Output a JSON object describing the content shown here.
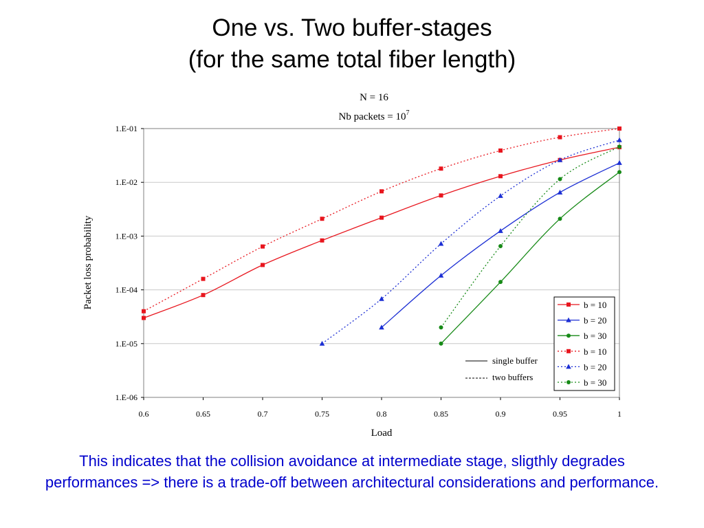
{
  "slide": {
    "title_line1": "One vs. Two buffer-stages",
    "title_line2": "(for the same total fiber length)",
    "caption": "This indicates that the collision avoidance at intermediate stage, sligthly degrades performances => there is a trade-off between architectural considerations and performance."
  },
  "chart_data": {
    "type": "line",
    "title": "N = 16",
    "subtitle_base": "Nb packets = 10",
    "subtitle_exp": "7",
    "xlabel": "Load",
    "ylabel": "Packet loss probability",
    "xlim": [
      0.6,
      1.0
    ],
    "ylim": [
      1e-06,
      0.1
    ],
    "yscale": "log",
    "x_ticks": [
      "0.6",
      "0.65",
      "0.7",
      "0.75",
      "0.8",
      "0.85",
      "0.9",
      "0.95",
      "1"
    ],
    "y_ticks": [
      "1.E-01",
      "1.E-02",
      "1.E-03",
      "1.E-04",
      "1.E-05",
      "1.E-06"
    ],
    "grid": "horizontal",
    "legend_position": "bottom-right",
    "series": [
      {
        "name": "b = 10",
        "color": "#e8161e",
        "line": "solid",
        "marker": "square",
        "x": [
          0.6,
          0.65,
          0.7,
          0.75,
          0.8,
          0.85,
          0.9,
          0.95,
          1.0
        ],
        "y": [
          3e-05,
          8e-05,
          0.00029,
          0.00083,
          0.0022,
          0.0057,
          0.013,
          0.026,
          0.045
        ]
      },
      {
        "name": "b = 20",
        "color": "#1c2fd4",
        "line": "solid",
        "marker": "triangle",
        "x": [
          0.8,
          0.85,
          0.9,
          0.95,
          1.0
        ],
        "y": [
          2e-05,
          0.000185,
          0.00125,
          0.0065,
          0.023
        ]
      },
      {
        "name": "b = 30",
        "color": "#178a17",
        "line": "solid",
        "marker": "circle",
        "x": [
          0.85,
          0.9,
          0.95,
          1.0
        ],
        "y": [
          1e-05,
          0.00014,
          0.0021,
          0.0155
        ]
      },
      {
        "name": "b = 10",
        "color": "#e8161e",
        "line": "dotted",
        "marker": "square",
        "x": [
          0.6,
          0.65,
          0.7,
          0.75,
          0.8,
          0.85,
          0.9,
          0.95,
          1.0
        ],
        "y": [
          4e-05,
          0.00016,
          0.00064,
          0.0021,
          0.0068,
          0.018,
          0.039,
          0.069,
          0.1
        ]
      },
      {
        "name": "b = 20",
        "color": "#1c2fd4",
        "line": "dotted",
        "marker": "triangle",
        "x": [
          0.75,
          0.8,
          0.85,
          0.9,
          0.95,
          1.0
        ],
        "y": [
          1e-05,
          6.8e-05,
          0.00072,
          0.0056,
          0.026,
          0.061
        ]
      },
      {
        "name": "b = 30",
        "color": "#178a17",
        "line": "dotted",
        "marker": "circle",
        "x": [
          0.85,
          0.9,
          0.95,
          1.0
        ],
        "y": [
          2e-05,
          0.00065,
          0.0115,
          0.046
        ]
      }
    ],
    "legend_notes": [
      {
        "label": "single buffer",
        "line": "solid"
      },
      {
        "label": "two buffers",
        "line": "dashed"
      }
    ]
  }
}
